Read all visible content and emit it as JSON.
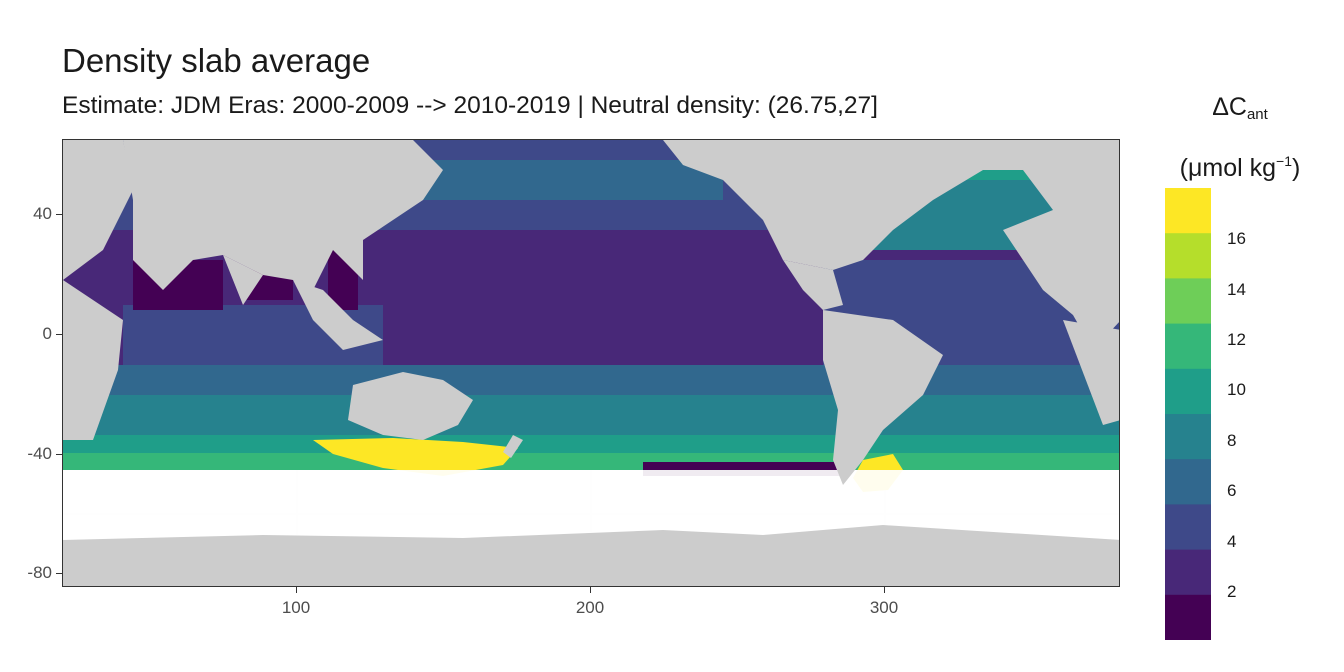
{
  "header": {
    "title": "Density slab average",
    "subtitle": "Estimate: JDM Eras: 2000-2009 --> 2010-2019 | Neutral density: (26.75,27]"
  },
  "axes": {
    "x_ticks": [
      "100",
      "200",
      "300"
    ],
    "y_ticks": [
      "40",
      "0",
      "-40",
      "-80"
    ]
  },
  "legend": {
    "title_symbol": "ΔC",
    "title_subscript": "ant",
    "unit_prefix": "(μmol kg",
    "unit_superscript": "−1",
    "unit_suffix": ")",
    "labels": [
      "16",
      "14",
      "12",
      "10",
      "8",
      "6",
      "4",
      "2"
    ],
    "colors": [
      "#fde725",
      "#b5de2b",
      "#6ece58",
      "#35b779",
      "#1f9e89",
      "#26828e",
      "#31688e",
      "#3e4989",
      "#482878",
      "#440154"
    ]
  },
  "map_colors": {
    "land": "#cccccc",
    "no_data": "#ffffff",
    "grid": "#ebebeb"
  },
  "chart_data": {
    "type": "heatmap",
    "title": "Density slab average",
    "subtitle": "Estimate: JDM Eras: 2000-2009 --> 2010-2019 | Neutral density: (26.75,27]",
    "xlim": [
      20,
      380
    ],
    "ylim": [
      -85,
      65
    ],
    "x_ticks": [
      100,
      200,
      300
    ],
    "y_ticks": [
      40,
      0,
      -40,
      -80
    ],
    "color_scale": "viridis",
    "legend_breaks": [
      2,
      4,
      6,
      8,
      10,
      12,
      14,
      16
    ]
  }
}
